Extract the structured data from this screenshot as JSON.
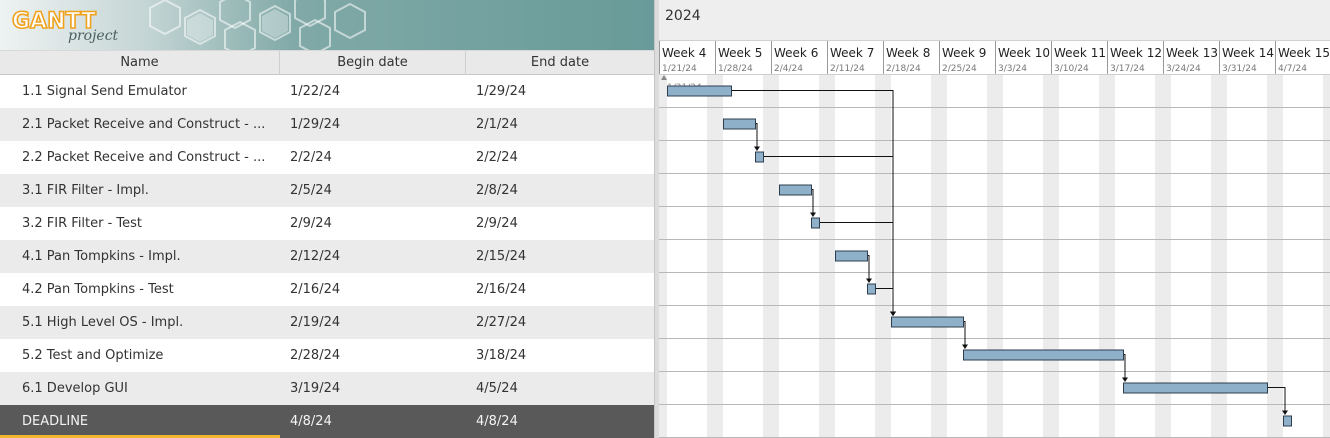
{
  "app": {
    "logo_word": "GANTT",
    "logo_sub": "project"
  },
  "table": {
    "columns": [
      "Name",
      "Begin date",
      "End date"
    ],
    "rows": [
      {
        "name": "1.1 Signal Send Emulator",
        "begin": "1/22/24",
        "end": "1/29/24"
      },
      {
        "name": "2.1 Packet Receive and Construct - ...",
        "begin": "1/29/24",
        "end": "2/1/24"
      },
      {
        "name": "2.2 Packet Receive and Construct - ...",
        "begin": "2/2/24",
        "end": "2/2/24"
      },
      {
        "name": "3.1 FIR Filter - Impl.",
        "begin": "2/5/24",
        "end": "2/8/24"
      },
      {
        "name": "3.2 FIR Filter - Test",
        "begin": "2/9/24",
        "end": "2/9/24"
      },
      {
        "name": "4.1 Pan Tompkins - Impl.",
        "begin": "2/12/24",
        "end": "2/15/24"
      },
      {
        "name": "4.2 Pan Tompkins - Test",
        "begin": "2/16/24",
        "end": "2/16/24"
      },
      {
        "name": "5.1 High Level OS - Impl.",
        "begin": "2/19/24",
        "end": "2/27/24"
      },
      {
        "name": "5.2 Test and Optimize",
        "begin": "2/28/24",
        "end": "3/18/24"
      },
      {
        "name": "6.1 Develop GUI",
        "begin": "3/19/24",
        "end": "4/5/24"
      },
      {
        "name": "DEADLINE",
        "begin": "4/8/24",
        "end": "4/8/24"
      }
    ],
    "selected_index": 10
  },
  "timeline": {
    "year": "2024",
    "weeks": [
      {
        "label": "Week 4",
        "date": "1/21/24"
      },
      {
        "label": "Week 5",
        "date": "1/28/24"
      },
      {
        "label": "Week 6",
        "date": "2/4/24"
      },
      {
        "label": "Week 7",
        "date": "2/11/24"
      },
      {
        "label": "Week 8",
        "date": "2/18/24"
      },
      {
        "label": "Week 9",
        "date": "2/25/24"
      },
      {
        "label": "Week 10",
        "date": "3/3/24"
      },
      {
        "label": "Week 11",
        "date": "3/10/24"
      },
      {
        "label": "Week 12",
        "date": "3/17/24"
      },
      {
        "label": "Week 13",
        "date": "3/24/24"
      },
      {
        "label": "Week 14",
        "date": "3/31/24"
      },
      {
        "label": "Week 15",
        "date": "4/7/24"
      }
    ],
    "today_marker": "1/21/24"
  },
  "chart_data": {
    "type": "gantt",
    "start_date": "2024-01-21",
    "tasks": [
      {
        "name": "1.1 Signal Send Emulator",
        "start": "2024-01-22",
        "end": "2024-01-29"
      },
      {
        "name": "2.1 Packet Receive and Construct",
        "start": "2024-01-29",
        "end": "2024-02-01"
      },
      {
        "name": "2.2 Packet Receive and Construct",
        "start": "2024-02-02",
        "end": "2024-02-02"
      },
      {
        "name": "3.1 FIR Filter - Impl.",
        "start": "2024-02-05",
        "end": "2024-02-08"
      },
      {
        "name": "3.2 FIR Filter - Test",
        "start": "2024-02-09",
        "end": "2024-02-09"
      },
      {
        "name": "4.1 Pan Tompkins - Impl.",
        "start": "2024-02-12",
        "end": "2024-02-15"
      },
      {
        "name": "4.2 Pan Tompkins - Test",
        "start": "2024-02-16",
        "end": "2024-02-16"
      },
      {
        "name": "5.1 High Level OS - Impl.",
        "start": "2024-02-19",
        "end": "2024-02-27"
      },
      {
        "name": "5.2 Test and Optimize",
        "start": "2024-02-28",
        "end": "2024-03-18"
      },
      {
        "name": "6.1 Develop GUI",
        "start": "2024-03-19",
        "end": "2024-04-05"
      },
      {
        "name": "DEADLINE",
        "start": "2024-04-08",
        "end": "2024-04-08"
      }
    ],
    "dependencies": [
      {
        "from": 1,
        "to": 2
      },
      {
        "from": 3,
        "to": 4
      },
      {
        "from": 5,
        "to": 6
      },
      {
        "from": 0,
        "to": 7
      },
      {
        "from": 2,
        "to": 7
      },
      {
        "from": 4,
        "to": 7
      },
      {
        "from": 6,
        "to": 7
      },
      {
        "from": 7,
        "to": 8
      },
      {
        "from": 8,
        "to": 9
      },
      {
        "from": 9,
        "to": 10
      }
    ]
  },
  "colors": {
    "bar_fill": "#8fb0c9",
    "bar_stroke": "#2c3e50",
    "weekend_shade": "#ececec",
    "selected_row": "#595959",
    "selected_underline": "#f1b62c",
    "banner": "#689b99"
  }
}
